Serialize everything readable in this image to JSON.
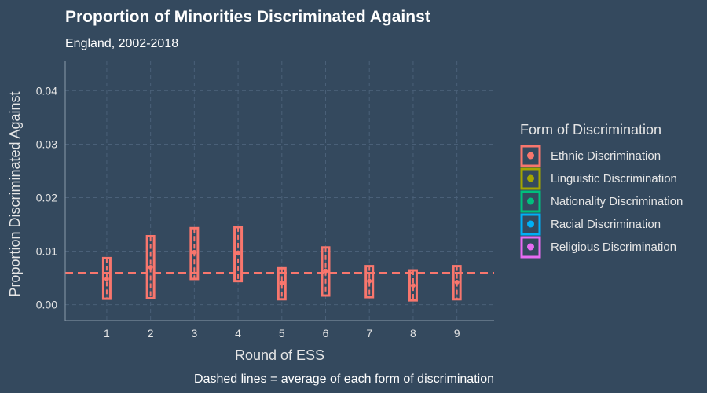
{
  "chart_data": {
    "type": "errorbar",
    "title": "Proportion of Minorities Discriminated Against",
    "subtitle": "England, 2002-2018",
    "xlabel": "Round of ESS",
    "ylabel": "Proportion Discriminated Against",
    "caption": "Dashed lines = average of each form of discrimination",
    "legend_title": "Form of Discrimination",
    "legend_position": "right",
    "grid": true,
    "xlim": [
      0.05,
      9.85
    ],
    "ylim": [
      -0.003,
      0.0455
    ],
    "x_ticks": [
      1,
      2,
      3,
      4,
      5,
      6,
      7,
      8,
      9
    ],
    "y_ticks": [
      0.0,
      0.01,
      0.02,
      0.03,
      0.04
    ],
    "y_tick_labels": [
      "0.00",
      "0.01",
      "0.02",
      "0.03",
      "0.04"
    ],
    "series": [
      {
        "name": "Ethnic Discrimination",
        "color": "#f8766d",
        "x": [
          1,
          2,
          3,
          4,
          5,
          6,
          7,
          8,
          9
        ],
        "estimate": [
          0.0048,
          0.007,
          0.0098,
          0.0097,
          0.004,
          0.0063,
          0.0044,
          0.0036,
          0.0042
        ],
        "lower": [
          0.0011,
          0.0012,
          0.0048,
          0.0044,
          0.001,
          0.0017,
          0.0014,
          0.0008,
          0.001
        ],
        "upper": [
          0.0087,
          0.0128,
          0.0143,
          0.0145,
          0.0068,
          0.0107,
          0.0072,
          0.0064,
          0.0072
        ],
        "average": 0.0059
      },
      {
        "name": "Linguistic Discrimination",
        "color": "#a3a500"
      },
      {
        "name": "Nationality Discrimination",
        "color": "#00bf7d"
      },
      {
        "name": "Racial Discrimination",
        "color": "#00b0f6"
      },
      {
        "name": "Religious Discrimination",
        "color": "#e76bf3"
      }
    ]
  }
}
